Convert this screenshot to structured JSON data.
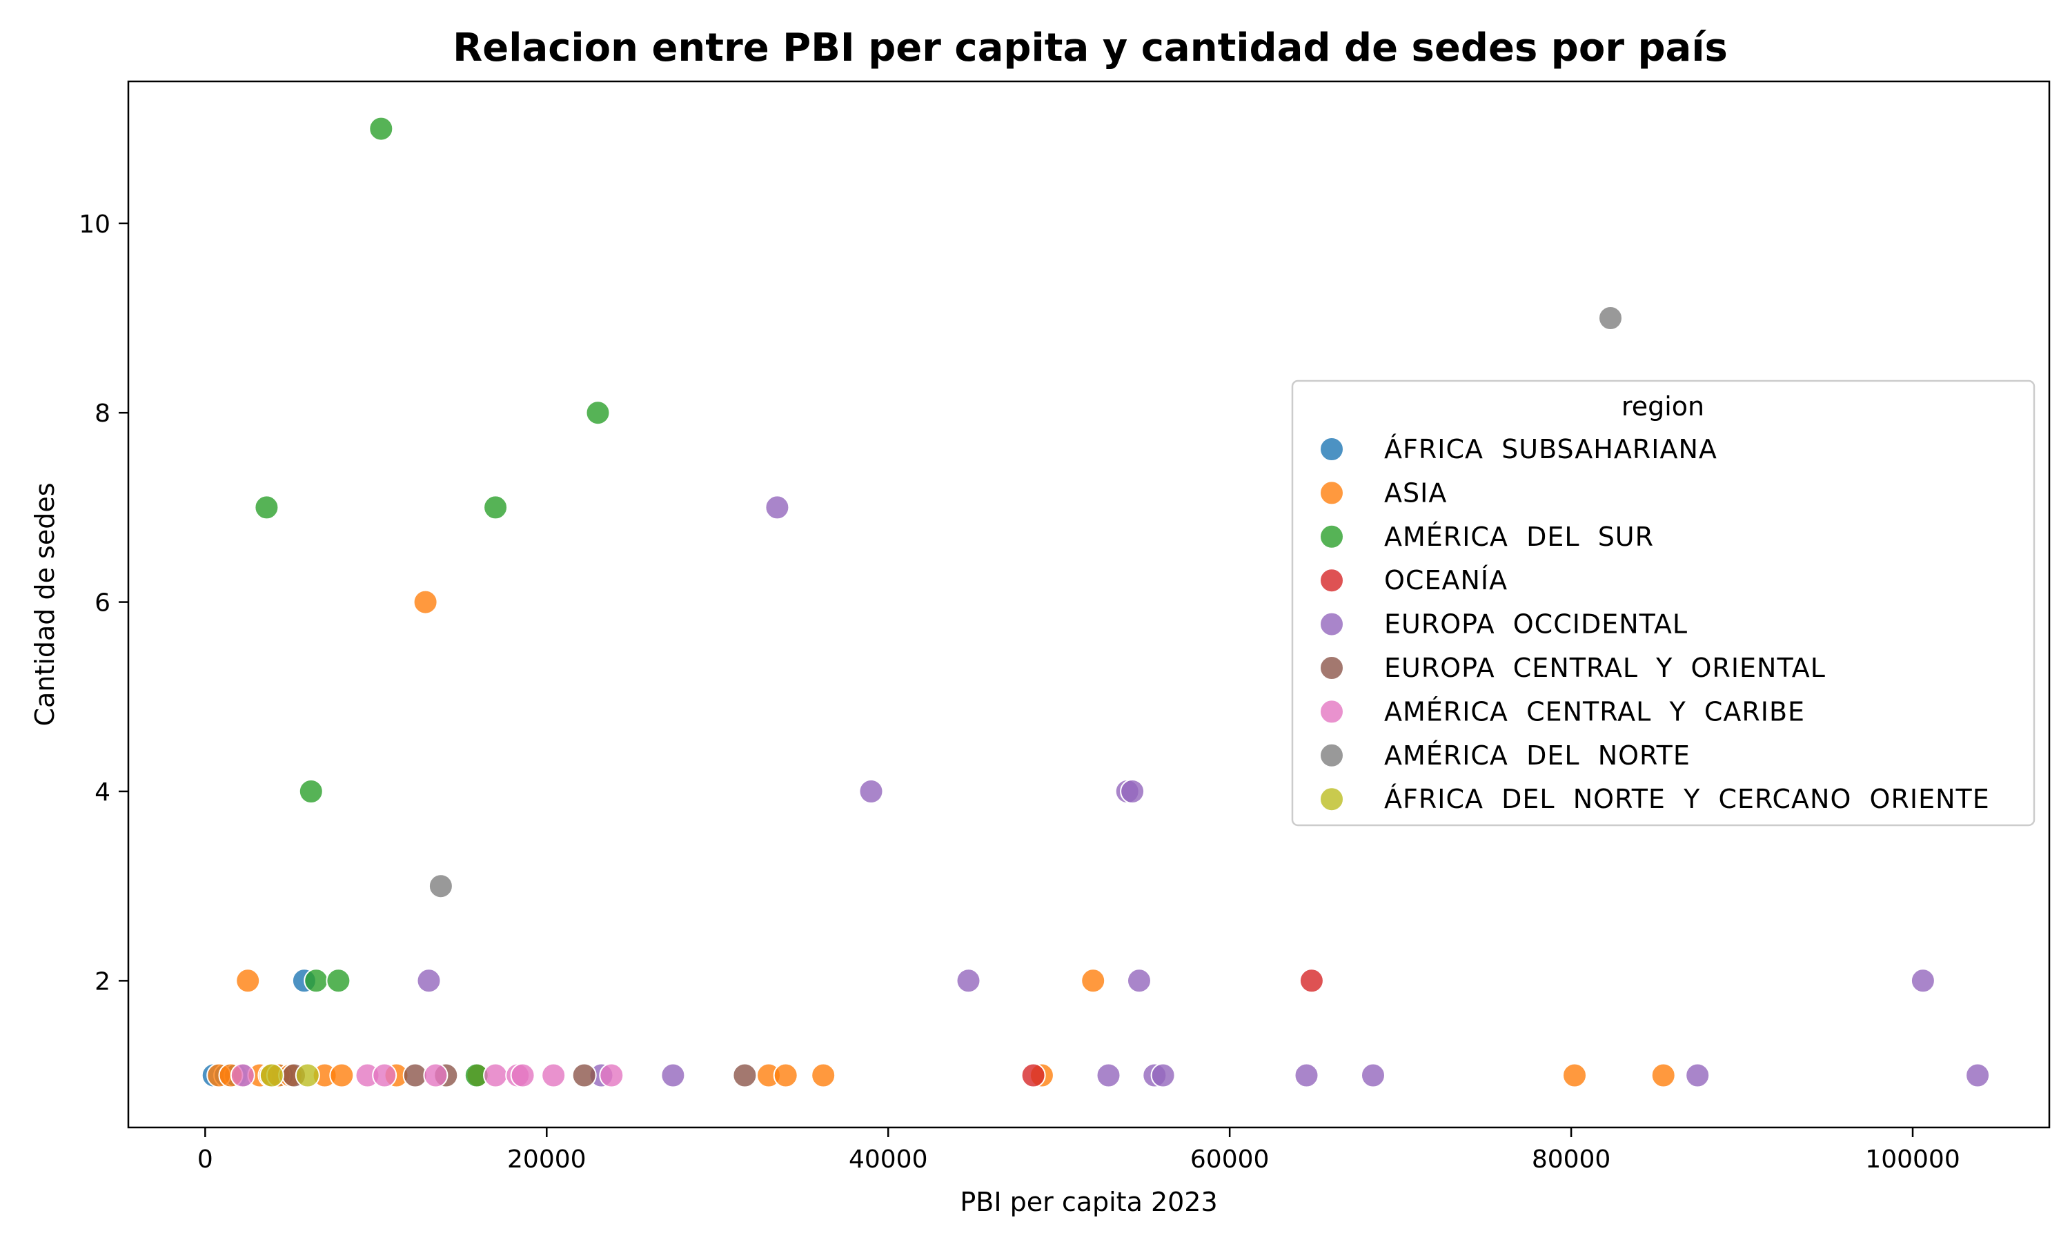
{
  "chart_data": {
    "type": "scatter",
    "title": "Relacion entre PBI per capita y cantidad de sedes por país",
    "xlabel": "PBI per capita 2023",
    "ylabel": "Cantidad de sedes",
    "xlim": [
      -4500,
      108000
    ],
    "ylim": [
      0.45,
      11.5
    ],
    "xticks": [
      0,
      20000,
      40000,
      60000,
      80000,
      100000
    ],
    "yticks": [
      2,
      4,
      6,
      8,
      10
    ],
    "grid": false,
    "legend": {
      "title": "region",
      "position": "center-right"
    },
    "series": [
      {
        "name": "ÁFRICA  SUBSAHARIANA",
        "color": "#1f77b4",
        "points": [
          [
            500,
            1
          ],
          [
            1200,
            1
          ],
          [
            1800,
            1
          ],
          [
            2300,
            1
          ],
          [
            4500,
            1
          ],
          [
            5800,
            2
          ]
        ]
      },
      {
        "name": "ASIA",
        "color": "#ff7f0e",
        "points": [
          [
            800,
            1
          ],
          [
            1500,
            1
          ],
          [
            2500,
            2
          ],
          [
            3200,
            1
          ],
          [
            3800,
            1
          ],
          [
            4300,
            1
          ],
          [
            5000,
            1
          ],
          [
            7000,
            1
          ],
          [
            8000,
            1
          ],
          [
            11200,
            1
          ],
          [
            12900,
            6
          ],
          [
            16000,
            1
          ],
          [
            33000,
            1
          ],
          [
            34000,
            1
          ],
          [
            36200,
            1
          ],
          [
            49000,
            1
          ],
          [
            52000,
            2
          ],
          [
            80200,
            1
          ],
          [
            85400,
            1
          ]
        ]
      },
      {
        "name": "AMÉRICA  DEL  SUR",
        "color": "#2ca02c",
        "points": [
          [
            3600,
            7
          ],
          [
            6200,
            4
          ],
          [
            6500,
            2
          ],
          [
            7800,
            2
          ],
          [
            10300,
            11
          ],
          [
            15900,
            1
          ],
          [
            17000,
            7
          ],
          [
            23000,
            8
          ]
        ]
      },
      {
        "name": "OCEANÍA",
        "color": "#d62728",
        "points": [
          [
            48500,
            1
          ],
          [
            64800,
            2
          ]
        ]
      },
      {
        "name": "EUROPA  OCCIDENTAL",
        "color": "#9467bd",
        "points": [
          [
            13100,
            2
          ],
          [
            23200,
            1
          ],
          [
            27400,
            1
          ],
          [
            33500,
            7
          ],
          [
            39000,
            4
          ],
          [
            44700,
            2
          ],
          [
            52900,
            1
          ],
          [
            54000,
            4
          ],
          [
            54300,
            4
          ],
          [
            54700,
            2
          ],
          [
            55600,
            1
          ],
          [
            56100,
            1
          ],
          [
            64500,
            1
          ],
          [
            68400,
            1
          ],
          [
            87400,
            1
          ],
          [
            100600,
            2
          ],
          [
            103800,
            1
          ]
        ]
      },
      {
        "name": "EUROPA  CENTRAL  Y  ORIENTAL",
        "color": "#8c564b",
        "points": [
          [
            5200,
            1
          ],
          [
            12300,
            1
          ],
          [
            14100,
            1
          ],
          [
            22200,
            1
          ],
          [
            31600,
            1
          ]
        ]
      },
      {
        "name": "AMÉRICA  CENTRAL  Y  CARIBE",
        "color": "#e377c2",
        "points": [
          [
            2200,
            1
          ],
          [
            9500,
            1
          ],
          [
            10500,
            1
          ],
          [
            13500,
            1
          ],
          [
            17000,
            1
          ],
          [
            18300,
            1
          ],
          [
            18600,
            1
          ],
          [
            20400,
            1
          ],
          [
            23800,
            1
          ]
        ]
      },
      {
        "name": "AMÉRICA  DEL  NORTE",
        "color": "#7f7f7f",
        "points": [
          [
            13800,
            3
          ],
          [
            82300,
            9
          ]
        ]
      },
      {
        "name": "ÁFRICA  DEL  NORTE  Y  CERCANO  ORIENTE",
        "color": "#bcbd22",
        "points": [
          [
            3900,
            1
          ],
          [
            6000,
            1
          ]
        ]
      }
    ]
  }
}
